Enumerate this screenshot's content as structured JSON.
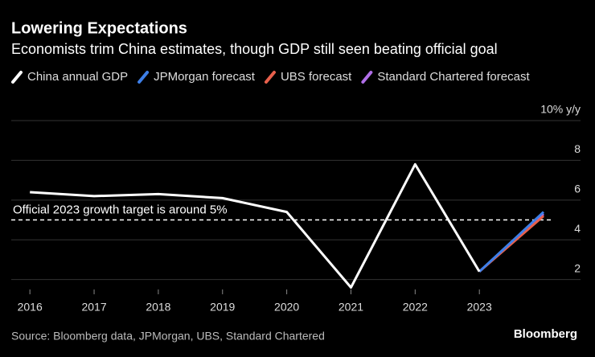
{
  "chart_data": {
    "type": "line",
    "title": "Lowering Expectations",
    "subtitle": "Economists trim China estimates, though GDP still seen beating official goal",
    "source": "Source: Bloomberg data, JPMorgan, UBS, Standard Chartered",
    "brand": "Bloomberg",
    "annotation": {
      "text": "Official 2023 growth target is around 5%",
      "value": 5
    },
    "xlim": [
      2015.8,
      2024.3
    ],
    "xticks": [
      2016,
      2017,
      2018,
      2019,
      2020,
      2021,
      2022,
      2023
    ],
    "ylim": [
      1.5,
      10
    ],
    "yticks": [
      2,
      4,
      6,
      8,
      {
        "value": 10,
        "label": "10% y/y"
      }
    ],
    "series": [
      {
        "name": "China annual GDP",
        "color": "#ffffff",
        "x": [
          2016,
          2017,
          2018,
          2019,
          2020,
          2021,
          2022,
          2023
        ],
        "values": [
          6.4,
          6.2,
          6.3,
          6.1,
          5.4,
          1.6,
          7.8,
          2.4
        ]
      },
      {
        "name": "JPMorgan forecast",
        "color": "#3d7fe8",
        "x": [
          2023,
          2024
        ],
        "values": [
          2.4,
          5.4
        ]
      },
      {
        "name": "UBS forecast",
        "color": "#e8604c",
        "x": [
          2023,
          2024
        ],
        "values": [
          2.4,
          5.2
        ]
      },
      {
        "name": "Standard Chartered forecast",
        "color": "#b06ee8",
        "x": [
          2023,
          2024
        ],
        "values": [
          2.4,
          5.3
        ]
      }
    ]
  }
}
